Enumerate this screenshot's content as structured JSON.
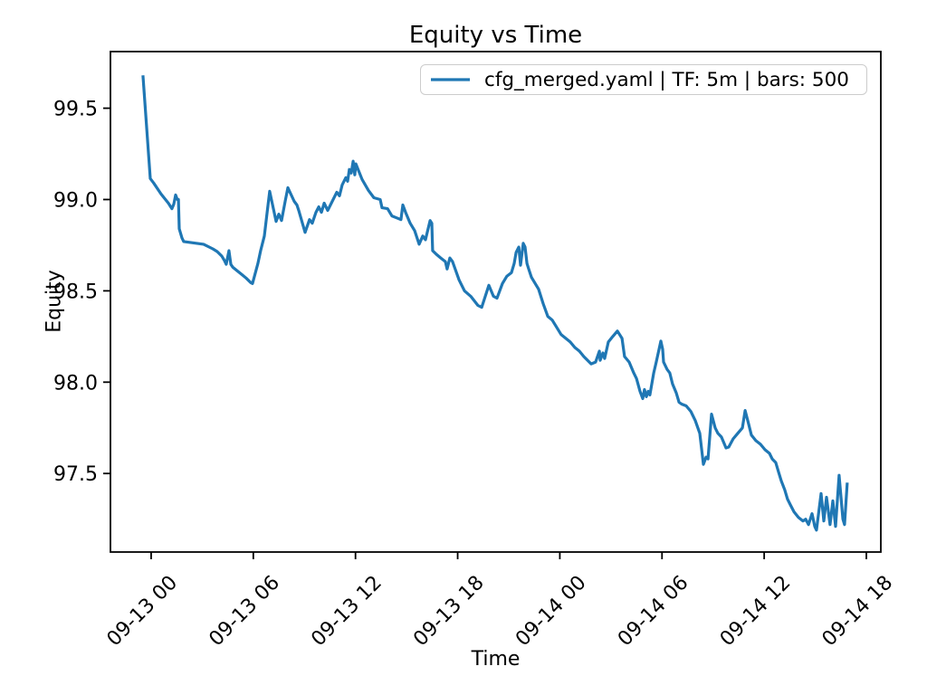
{
  "title": "Equity vs Time",
  "axes": {
    "xlabel": "Time",
    "ylabel": "Equity"
  },
  "legend": {
    "label": "cfg_merged.yaml | TF: 5m | bars: 500"
  },
  "colors": {
    "line": "#1f77b4",
    "text": "#000000",
    "legend_border": "#cccccc",
    "background": "#ffffff"
  },
  "chart_data": {
    "type": "line",
    "title": "Equity vs Time",
    "xlabel": "Time",
    "ylabel": "Equity",
    "legend_entries": [
      "cfg_merged.yaml | TF: 5m | bars: 500"
    ],
    "legend_position": "upper right",
    "grid": false,
    "x_unit": "hours relative to 09-13 00:00, ticks every 6h",
    "xlim": [
      -2.39,
      42.85
    ],
    "ylim": [
      97.07,
      99.81
    ],
    "xticks": {
      "values": [
        0,
        6,
        12,
        18,
        24,
        30,
        36,
        42
      ],
      "labels": [
        "09-13 00",
        "09-13 06",
        "09-13 12",
        "09-13 18",
        "09-14 00",
        "09-14 06",
        "09-14 12",
        "09-14 18"
      ],
      "rotation": 45
    },
    "yticks": {
      "values": [
        97.5,
        98.0,
        98.5,
        99.0,
        99.5
      ]
    },
    "series": [
      {
        "name": "cfg_merged.yaml | TF: 5m | bars: 500",
        "color": "#1f77b4",
        "points": [
          [
            -0.48,
            99.68
          ],
          [
            -0.05,
            99.115
          ],
          [
            0.15,
            99.09
          ],
          [
            0.58,
            99.03
          ],
          [
            1.01,
            98.98
          ],
          [
            1.22,
            98.95
          ],
          [
            1.33,
            98.975
          ],
          [
            1.44,
            99.025
          ],
          [
            1.54,
            99.0
          ],
          [
            1.6,
            99.0
          ],
          [
            1.65,
            98.84
          ],
          [
            1.81,
            98.79
          ],
          [
            1.91,
            98.77
          ],
          [
            3.08,
            98.755
          ],
          [
            3.62,
            98.73
          ],
          [
            3.88,
            98.715
          ],
          [
            4.15,
            98.69
          ],
          [
            4.31,
            98.665
          ],
          [
            4.41,
            98.645
          ],
          [
            4.57,
            98.72
          ],
          [
            4.68,
            98.645
          ],
          [
            4.79,
            98.63
          ],
          [
            5.05,
            98.61
          ],
          [
            5.32,
            98.59
          ],
          [
            5.58,
            98.57
          ],
          [
            5.85,
            98.545
          ],
          [
            5.95,
            98.54
          ],
          [
            6.27,
            98.65
          ],
          [
            6.43,
            98.72
          ],
          [
            6.65,
            98.8
          ],
          [
            6.81,
            98.93
          ],
          [
            6.96,
            99.045
          ],
          [
            7.34,
            98.88
          ],
          [
            7.5,
            98.92
          ],
          [
            7.66,
            98.885
          ],
          [
            7.87,
            98.99
          ],
          [
            8.03,
            99.065
          ],
          [
            8.4,
            98.99
          ],
          [
            8.56,
            98.97
          ],
          [
            8.67,
            98.94
          ],
          [
            9.04,
            98.82
          ],
          [
            9.3,
            98.89
          ],
          [
            9.46,
            98.87
          ],
          [
            9.68,
            98.93
          ],
          [
            9.84,
            98.96
          ],
          [
            10.0,
            98.93
          ],
          [
            10.16,
            98.98
          ],
          [
            10.37,
            98.94
          ],
          [
            10.69,
            99.0
          ],
          [
            10.9,
            99.04
          ],
          [
            11.06,
            99.02
          ],
          [
            11.22,
            99.08
          ],
          [
            11.43,
            99.12
          ],
          [
            11.54,
            99.1
          ],
          [
            11.64,
            99.165
          ],
          [
            11.75,
            99.145
          ],
          [
            11.86,
            99.21
          ],
          [
            11.96,
            99.135
          ],
          [
            12.02,
            99.195
          ],
          [
            12.39,
            99.11
          ],
          [
            12.76,
            99.05
          ],
          [
            13.08,
            99.01
          ],
          [
            13.45,
            99.0
          ],
          [
            13.56,
            98.955
          ],
          [
            13.88,
            98.95
          ],
          [
            14.14,
            98.91
          ],
          [
            14.41,
            98.9
          ],
          [
            14.67,
            98.89
          ],
          [
            14.78,
            98.97
          ],
          [
            14.94,
            98.93
          ],
          [
            15.21,
            98.87
          ],
          [
            15.47,
            98.83
          ],
          [
            15.74,
            98.755
          ],
          [
            15.95,
            98.8
          ],
          [
            16.11,
            98.78
          ],
          [
            16.38,
            98.885
          ],
          [
            16.48,
            98.87
          ],
          [
            16.53,
            98.72
          ],
          [
            16.75,
            98.7
          ],
          [
            17.01,
            98.68
          ],
          [
            17.28,
            98.66
          ],
          [
            17.38,
            98.62
          ],
          [
            17.54,
            98.68
          ],
          [
            17.7,
            98.66
          ],
          [
            18.08,
            98.56
          ],
          [
            18.4,
            98.5
          ],
          [
            18.77,
            98.47
          ],
          [
            19.19,
            98.42
          ],
          [
            19.41,
            98.41
          ],
          [
            19.83,
            98.53
          ],
          [
            20.1,
            98.47
          ],
          [
            20.31,
            98.46
          ],
          [
            20.63,
            98.54
          ],
          [
            20.89,
            98.58
          ],
          [
            21.16,
            98.6
          ],
          [
            21.32,
            98.65
          ],
          [
            21.43,
            98.71
          ],
          [
            21.59,
            98.74
          ],
          [
            21.69,
            98.64
          ],
          [
            21.85,
            98.76
          ],
          [
            21.96,
            98.74
          ],
          [
            22.07,
            98.65
          ],
          [
            22.17,
            98.62
          ],
          [
            22.33,
            98.575
          ],
          [
            22.49,
            98.55
          ],
          [
            22.75,
            98.51
          ],
          [
            23.02,
            98.43
          ],
          [
            23.29,
            98.36
          ],
          [
            23.55,
            98.34
          ],
          [
            23.82,
            98.3
          ],
          [
            24.08,
            98.26
          ],
          [
            24.61,
            98.22
          ],
          [
            24.88,
            98.19
          ],
          [
            25.15,
            98.17
          ],
          [
            25.41,
            98.14
          ],
          [
            25.84,
            98.1
          ],
          [
            26.1,
            98.11
          ],
          [
            26.32,
            98.17
          ],
          [
            26.37,
            98.12
          ],
          [
            26.53,
            98.16
          ],
          [
            26.63,
            98.13
          ],
          [
            26.85,
            98.22
          ],
          [
            27.11,
            98.25
          ],
          [
            27.38,
            98.28
          ],
          [
            27.65,
            98.24
          ],
          [
            27.8,
            98.14
          ],
          [
            28.07,
            98.11
          ],
          [
            28.34,
            98.05
          ],
          [
            28.5,
            98.02
          ],
          [
            28.71,
            97.95
          ],
          [
            28.87,
            97.91
          ],
          [
            28.97,
            97.96
          ],
          [
            29.08,
            97.92
          ],
          [
            29.19,
            97.95
          ],
          [
            29.29,
            97.93
          ],
          [
            29.51,
            98.05
          ],
          [
            29.66,
            98.11
          ],
          [
            29.93,
            98.225
          ],
          [
            30.04,
            98.18
          ],
          [
            30.09,
            98.11
          ],
          [
            30.3,
            98.07
          ],
          [
            30.46,
            98.05
          ],
          [
            30.62,
            97.99
          ],
          [
            30.84,
            97.94
          ],
          [
            31.0,
            97.89
          ],
          [
            31.15,
            97.88
          ],
          [
            31.42,
            97.87
          ],
          [
            31.69,
            97.84
          ],
          [
            31.95,
            97.79
          ],
          [
            32.22,
            97.72
          ],
          [
            32.43,
            97.55
          ],
          [
            32.59,
            97.59
          ],
          [
            32.7,
            97.58
          ],
          [
            32.91,
            97.825
          ],
          [
            33.12,
            97.75
          ],
          [
            33.28,
            97.72
          ],
          [
            33.49,
            97.7
          ],
          [
            33.76,
            97.64
          ],
          [
            33.92,
            97.645
          ],
          [
            34.18,
            97.69
          ],
          [
            34.45,
            97.72
          ],
          [
            34.72,
            97.75
          ],
          [
            34.88,
            97.845
          ],
          [
            35.09,
            97.77
          ],
          [
            35.25,
            97.71
          ],
          [
            35.51,
            97.68
          ],
          [
            35.78,
            97.66
          ],
          [
            36.05,
            97.63
          ],
          [
            36.31,
            97.61
          ],
          [
            36.47,
            97.58
          ],
          [
            36.68,
            97.56
          ],
          [
            36.84,
            97.51
          ],
          [
            37.0,
            97.46
          ],
          [
            37.21,
            97.41
          ],
          [
            37.37,
            97.36
          ],
          [
            37.53,
            97.33
          ],
          [
            37.75,
            97.29
          ],
          [
            38.01,
            97.26
          ],
          [
            38.28,
            97.24
          ],
          [
            38.44,
            97.25
          ],
          [
            38.6,
            97.22
          ],
          [
            38.81,
            97.28
          ],
          [
            38.97,
            97.21
          ],
          [
            39.07,
            97.19
          ],
          [
            39.34,
            97.39
          ],
          [
            39.5,
            97.24
          ],
          [
            39.66,
            97.37
          ],
          [
            39.87,
            97.22
          ],
          [
            40.03,
            97.35
          ],
          [
            40.19,
            97.21
          ],
          [
            40.4,
            97.49
          ],
          [
            40.62,
            97.25
          ],
          [
            40.72,
            97.22
          ],
          [
            40.88,
            97.45
          ]
        ]
      }
    ]
  }
}
